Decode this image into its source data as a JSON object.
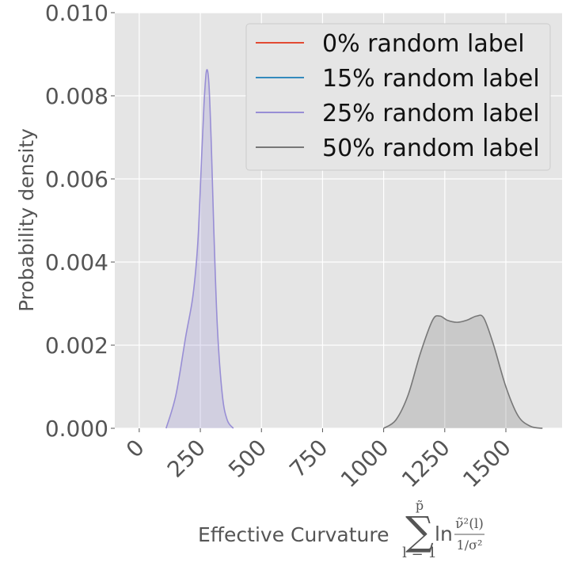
{
  "chart_data": {
    "type": "area",
    "ylabel": "Probability density",
    "xlabel": {
      "prefix": "Effective Curvature",
      "sum_symbol": "∑",
      "sum_upper": "p̃",
      "sum_lower": "l = 1",
      "log": "ln",
      "frac_numerator": "ν̃²(l)",
      "frac_denominator": "1/σ²"
    },
    "xlim": [
      -100,
      1730
    ],
    "ylim": [
      0,
      0.01
    ],
    "xticks": [
      0,
      250,
      500,
      750,
      1000,
      1250,
      1500
    ],
    "xtick_labels": [
      "0",
      "250",
      "500",
      "750",
      "1000",
      "1250",
      "1500"
    ],
    "yticks": [
      0,
      0.002,
      0.004,
      0.006,
      0.008,
      0.01
    ],
    "ytick_labels": [
      "0.000",
      "0.002",
      "0.004",
      "0.006",
      "0.008",
      "0.010"
    ],
    "grid": true,
    "legend_position": "top-right",
    "series": [
      {
        "name": "0% random label",
        "color": "#e24a33",
        "x": [],
        "y": []
      },
      {
        "name": "15% random label",
        "color": "#348abd",
        "x": [],
        "y": []
      },
      {
        "name": "25% random label",
        "color": "#988ed5",
        "x": [
          110,
          150,
          190,
          220,
          240,
          255,
          265,
          275,
          285,
          295,
          305,
          320,
          340,
          360,
          385
        ],
        "y": [
          0,
          0.0008,
          0.0022,
          0.0032,
          0.0045,
          0.0065,
          0.0078,
          0.0086,
          0.0083,
          0.0068,
          0.0048,
          0.0024,
          0.0008,
          0.0002,
          0
        ]
      },
      {
        "name": "50% random label",
        "color": "#777777",
        "x": [
          1000,
          1050,
          1100,
          1150,
          1200,
          1230,
          1260,
          1300,
          1340,
          1380,
          1410,
          1450,
          1500,
          1550,
          1600,
          1650
        ],
        "y": [
          0,
          0.0002,
          0.0008,
          0.0018,
          0.0026,
          0.0027,
          0.0026,
          0.00255,
          0.0026,
          0.0027,
          0.00265,
          0.002,
          0.001,
          0.0003,
          5e-05,
          0
        ]
      }
    ]
  }
}
